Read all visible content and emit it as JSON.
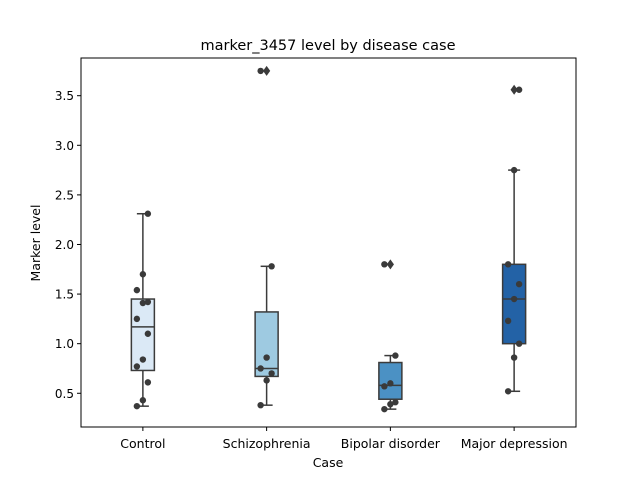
{
  "chart_data": {
    "type": "box",
    "title": "marker_3457 level by disease case",
    "xlabel": "Case",
    "ylabel": "Marker level",
    "ylim": [
      0.16,
      3.88
    ],
    "yticks": [
      0.5,
      1.0,
      1.5,
      2.0,
      2.5,
      3.0,
      3.5
    ],
    "ytick_labels": [
      "0.5",
      "1.0",
      "1.5",
      "2.0",
      "2.5",
      "3.0",
      "3.5"
    ],
    "grid": false,
    "categories": [
      "Control",
      "Schizophrenia",
      "Bipolar disorder",
      "Major depression"
    ],
    "boxes": [
      {
        "category": "Control",
        "color": "#dbe9f6",
        "q1": 0.73,
        "median": 1.17,
        "q3": 1.45,
        "whisker_low": 0.37,
        "whisker_high": 2.31,
        "outliers": [],
        "points": [
          2.31,
          1.7,
          1.54,
          1.42,
          1.41,
          1.25,
          1.1,
          0.84,
          0.77,
          0.61,
          0.43,
          0.37
        ]
      },
      {
        "category": "Schizophrenia",
        "color": "#9ecae1",
        "q1": 0.67,
        "median": 0.75,
        "q3": 1.32,
        "whisker_low": 0.38,
        "whisker_high": 1.78,
        "outliers": [
          3.75
        ],
        "points": [
          3.75,
          1.78,
          0.86,
          0.75,
          0.7,
          0.63,
          0.38
        ]
      },
      {
        "category": "Bipolar disorder",
        "color": "#4b91c4",
        "q1": 0.44,
        "median": 0.58,
        "q3": 0.81,
        "whisker_low": 0.34,
        "whisker_high": 0.88,
        "outliers": [
          1.8
        ],
        "points": [
          1.8,
          0.88,
          0.6,
          0.57,
          0.41,
          0.39,
          0.34
        ]
      },
      {
        "category": "Major depression",
        "color": "#2362a6",
        "q1": 1.0,
        "median": 1.45,
        "q3": 1.8,
        "whisker_low": 0.52,
        "whisker_high": 2.75,
        "outliers": [
          3.56
        ],
        "points": [
          3.56,
          2.75,
          1.8,
          1.6,
          1.45,
          1.23,
          1.0,
          0.86,
          0.52
        ]
      }
    ]
  }
}
